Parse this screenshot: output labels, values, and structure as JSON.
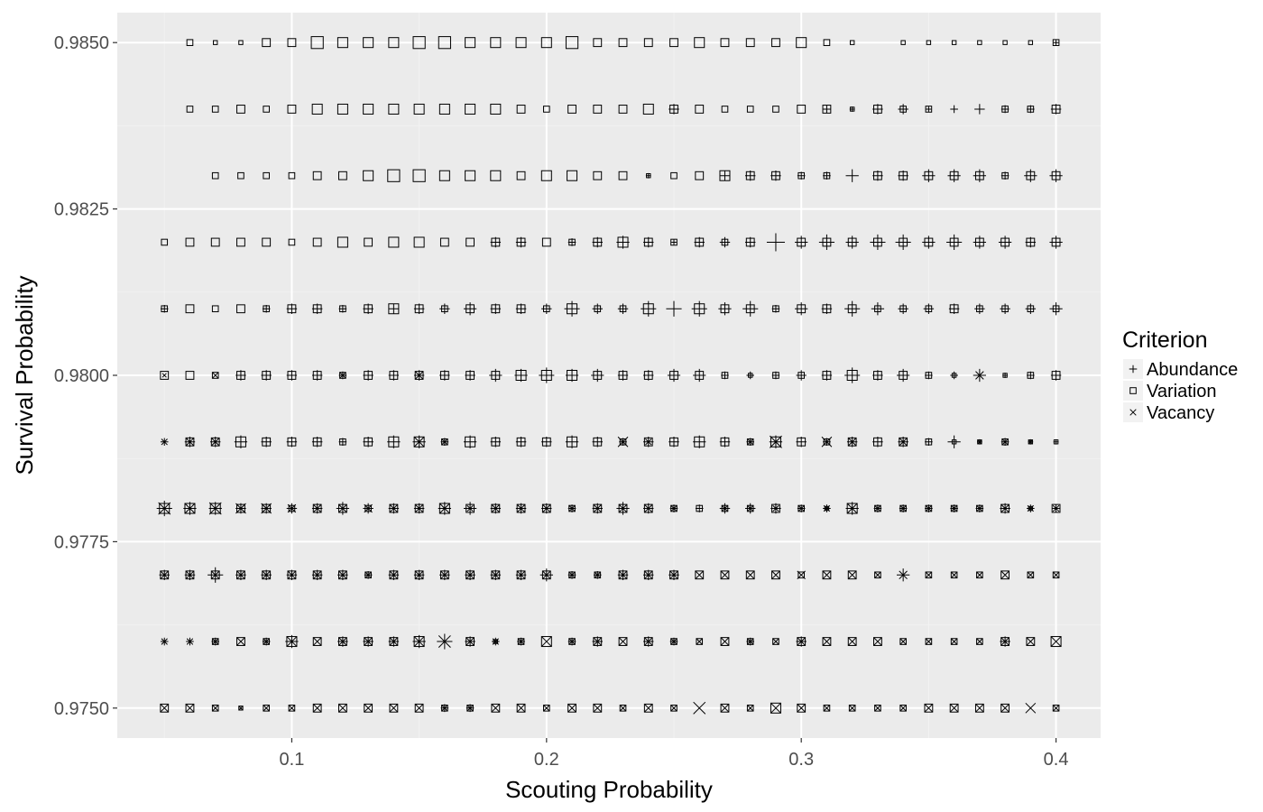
{
  "colors": {
    "panel_background": "#ebebeb",
    "major_grid": "#ffffff",
    "minor_grid": "#f2f2f2",
    "marker_stroke": "#000000",
    "tick_text": "#4d4d4d",
    "title_text": "#000000",
    "legend_key_background": "#f2f2f2"
  },
  "chart_data": {
    "type": "scatter",
    "title": "",
    "xlabel": "Scouting Probability",
    "ylabel": "Survival Probability",
    "xlim": [
      0.0315,
      0.4175
    ],
    "ylim": [
      0.97455,
      0.98545
    ],
    "x_ticks": [
      0.1,
      0.2,
      0.3,
      0.4
    ],
    "x_tick_labels": [
      "0.1",
      "0.2",
      "0.3",
      "0.4"
    ],
    "y_ticks": [
      0.975,
      0.9775,
      0.98,
      0.9825,
      0.985
    ],
    "y_tick_labels": [
      "0.9750",
      "0.9775",
      "0.9800",
      "0.9825",
      "0.9850"
    ],
    "grid": true,
    "legend": {
      "title": "Criterion",
      "placement": "right",
      "entries": [
        {
          "label": "Abundance",
          "shape": "plus"
        },
        {
          "label": "Variation",
          "shape": "square"
        },
        {
          "label": "Vacancy",
          "shape": "cross"
        }
      ]
    },
    "x_values": [
      0.05,
      0.06,
      0.07,
      0.08,
      0.09,
      0.1,
      0.11,
      0.12,
      0.13,
      0.14,
      0.15,
      0.16,
      0.17,
      0.18,
      0.19,
      0.2,
      0.21,
      0.22,
      0.23,
      0.24,
      0.25,
      0.26,
      0.27,
      0.28,
      0.29,
      0.3,
      0.31,
      0.32,
      0.33,
      0.34,
      0.35,
      0.36,
      0.37,
      0.38,
      0.39,
      0.4
    ],
    "rows": [
      {
        "y": 0.985,
        "cells": [
          null,
          "S3",
          "S2",
          "S2",
          "S4",
          "S4",
          "S6",
          "S5",
          "S5",
          "S5",
          "S6",
          "S6",
          "S5",
          "S5",
          "S5",
          "S5",
          "S6",
          "S4",
          "S4",
          "S4",
          "S4",
          "S5",
          "S4",
          "S4",
          "S4",
          "S5",
          "S3",
          "S2",
          null,
          "S2",
          "S2",
          "S2",
          "S2",
          "S2",
          "S2",
          "S3P2"
        ]
      },
      {
        "y": 0.984,
        "cells": [
          null,
          "S3",
          "S3",
          "S4",
          "S3",
          "S4",
          "S5",
          "S5",
          "S5",
          "S5",
          "S5",
          "S5",
          "S5",
          "S5",
          "S4",
          "S3",
          "S4",
          "S4",
          "S4",
          "S5",
          "S4P4",
          "S4",
          "S3",
          "S3",
          "S3",
          "S4",
          "S4P3",
          "S2P2",
          "S4P4",
          "S3P4",
          "S3P2",
          "P3",
          "P4",
          "S3P3",
          "S3P3",
          "S4P4"
        ]
      },
      {
        "y": 0.983,
        "cells": [
          null,
          null,
          "S3",
          "S3",
          "S3",
          "S3",
          "S4",
          "S4",
          "S5",
          "S6",
          "S6",
          "S5",
          "S5",
          "S5",
          "S4",
          "S5",
          "S5",
          "S4",
          "S4",
          "S2P2",
          "S3",
          "S4",
          "S5P4",
          "S4P4",
          "S4P4",
          "S3P3",
          "S3P3",
          "P5",
          "S4P4",
          "S4P4",
          "S4P5",
          "S4P5",
          "S4P5",
          "S3P3",
          "S4P5",
          "S4P5"
        ]
      },
      {
        "y": 0.982,
        "cells": [
          "S3",
          "S4",
          "S4",
          "S4",
          "S4",
          "S3",
          "S4",
          "S5",
          "S4",
          "S5",
          "S5",
          "S4",
          "S4",
          "S4P4",
          "S4P4",
          "S4",
          "S3P3",
          "S4P4",
          "S5P5",
          "S4P4",
          "S3P2",
          "S4P4",
          "S3P4",
          "S4P4",
          "P7",
          "S4P5",
          "S4P6",
          "S4P5",
          "S4P6",
          "S4P6",
          "S4P5",
          "S4P6",
          "S4P5",
          "S4P5",
          "S4P4",
          "S4P5"
        ]
      },
      {
        "y": 0.981,
        "cells": [
          "S3P3",
          "S4",
          "S3",
          "S4",
          "S3P3",
          "S4P4",
          "S4P4",
          "S3P3",
          "S4P4",
          "S5P4",
          "S4P4",
          "S3P4",
          "S4P5",
          "S4P4",
          "S4P4",
          "S3P4",
          "S5P6",
          "S3P4",
          "S3P4",
          "S5P6",
          "P6",
          "S5P6",
          "S4P5",
          "S4P6",
          "S3P3",
          "S4P5",
          "S4P4",
          "S4P6",
          "S3P5",
          "S3P4",
          "S3P4",
          "S4P4",
          "S3P4",
          "S3P4",
          "S3P4",
          "S3P5"
        ]
      },
      {
        "y": 0.98,
        "cells": [
          "S4X2",
          "S4",
          "S3X3",
          "S4P4",
          "S4P4",
          "S4P4",
          "S4P4",
          "S3P3X3",
          "S4P4",
          "S4P4",
          "S4P4X4",
          "S4P4",
          "S4P4",
          "S4P5",
          "S5P5",
          "S5P6",
          "S5P5",
          "S4P5",
          "S4P4",
          "S4P4",
          "S4P5",
          "S4P5",
          "S3P3",
          "S2P3",
          "S3P3",
          "S3P4",
          "S4P4",
          "S5P6",
          "S4P4",
          "S4P5",
          "S3P3",
          "S2P3",
          "P5X4",
          "S2P2",
          "S3P3",
          "S4P4"
        ]
      },
      {
        "y": 0.979,
        "cells": [
          "P3X3",
          "S4P4X4",
          "S4P4X4",
          "S5P5",
          "S4P4",
          "S4P4",
          "S4P4",
          "S3P3",
          "S4P4",
          "S5P5",
          "S5P5X5",
          "S3P3X3",
          "S5P5",
          "S4P4",
          "S4P4",
          "S4P4",
          "S5P5",
          "S4P4",
          "S3P3X5",
          "S4P4X3",
          "S4P4",
          "S5P5",
          "S4P4",
          "S3P3X3",
          "S5P5X6",
          "S4P4",
          "S3P3X5",
          "S4P4X4",
          "S4P4",
          "S4P4X4",
          "S3P3",
          "S2P5",
          "S2P2X2",
          "S3P3X3",
          "S2P2X2",
          "S2P2"
        ]
      },
      {
        "y": 0.978,
        "cells": [
          "S5P6X6",
          "S5P5X5",
          "S5P5X6",
          "S4P4X5",
          "S4P4X5",
          "S3P4X4",
          "S4P4X4",
          "S4P5X4",
          "S3P4X4",
          "S4P4X4",
          "S4P4X4",
          "S5P5X5",
          "S4P5X3",
          "S4P4X4",
          "S4P4X4",
          "S4P4X4",
          "S3P3X3",
          "S4P4X4",
          "S4P5X4",
          "S4P4X4",
          "S3P3X3",
          "S3P3",
          "S3P4X3",
          "S3P4X3",
          "S4P4X3",
          "S3P3X3",
          "S2P3X3",
          "S5P5X5",
          "S3P3X3",
          "S3P3X3",
          "S3P3X3",
          "S3P3X3",
          "S3P3X3",
          "S4P4X4",
          "S2P3X3",
          "S4P3X3"
        ]
      },
      {
        "y": 0.977,
        "cells": [
          "S4P4X4",
          "S4P4X4",
          "S4P6X4",
          "S4P4X4",
          "S4P4X4",
          "S4P4X4",
          "S4P4X4",
          "S4P4X4",
          "S3P3X3",
          "S4P4X4",
          "S4P4X4",
          "S4P4X4",
          "S4P4X4",
          "S4P4X4",
          "S4P4X4",
          "S4P5X4",
          "S3P3X3",
          "S3P3X3",
          "S4P4X4",
          "S4P4X4",
          "S4P4X4",
          "S4X4",
          "S4X4",
          "S4X4",
          "S4X4",
          "S3X4",
          "S4X4",
          "S4X4",
          "S3X3",
          "P5X4",
          "S3X3",
          "S3X3",
          "S3X3",
          "S4X4",
          "S3X3",
          "S3X3"
        ]
      },
      {
        "y": 0.976,
        "cells": [
          "P3X3",
          "P3X3",
          "S3P3X3",
          "S4X4",
          "S3P3X3",
          "S5P5X5",
          "S4X4",
          "S4P4X4",
          "S4P4X4",
          "S4P4X4",
          "S5P5X5",
          "P6X6",
          "S4P4X4",
          "S2P3X3",
          "S3P3X3",
          "S5X5",
          "S3P3X3",
          "S4P4X4",
          "S4X4",
          "S4P4X4",
          "S3P3X3",
          "S3X3",
          "S4X4",
          "S3P3X3",
          "S3X3",
          "S4P4X4",
          "S4X4",
          "S4X4",
          "S4X4",
          "S3X3",
          "S3X3",
          "S3X3",
          "S3X3",
          "S4P4X4",
          "S4X4",
          "S5X5"
        ]
      },
      {
        "y": 0.975,
        "cells": [
          "S4X4",
          "S4X4",
          "S3X3",
          "S2X2",
          "S3X3",
          "S3X3",
          "S4X4",
          "S4X4",
          "S4X4",
          "S4X4",
          "S4X4",
          "S3P3X3",
          "S3P3X3",
          "S4X4",
          "S4X4",
          "S3X3",
          "S4X4",
          "S4X4",
          "S3X3",
          "S4X4",
          "S3X3",
          "X6",
          "S4X4",
          "S3X3",
          "S5X5",
          "S4X4",
          "S3X3",
          "S3X3",
          "S3X3",
          "S3X3",
          "S4X4",
          "S4X4",
          "S4X4",
          "S4X4",
          "X5",
          "S3X3"
        ]
      }
    ]
  }
}
